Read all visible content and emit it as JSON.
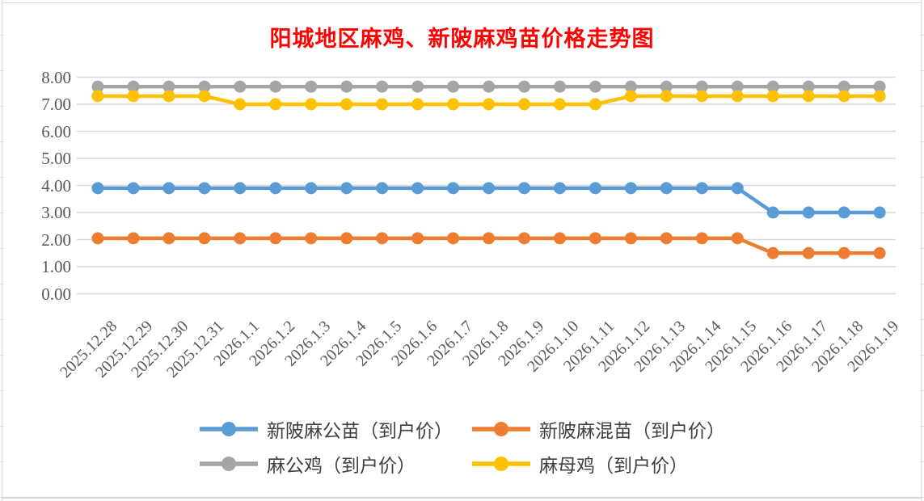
{
  "page": {
    "background": "#FFFFFF",
    "frame_color": "#D9D9D9"
  },
  "chart_data": {
    "type": "line",
    "title": "阳城地区麻鸡、新陂麻鸡苗价格走势图",
    "title_color": "#FF0000",
    "xlabel": "",
    "ylabel": "",
    "ylim": [
      0,
      8
    ],
    "ytick_step": 1.0,
    "ytick_labels": [
      "0.00",
      "1.00",
      "2.00",
      "3.00",
      "4.00",
      "5.00",
      "6.00",
      "7.00",
      "8.00"
    ],
    "grid": true,
    "gridline_color": "#D9D9D9",
    "axis_label_color": "#595959",
    "legend_position": "bottom",
    "categories": [
      "2025.12.28",
      "2025.12.29",
      "2025.12.30",
      "2025.12.31",
      "2026.1.1",
      "2026.1.2",
      "2026.1.3",
      "2026.1.4",
      "2026.1.5",
      "2026.1.6",
      "2026.1.7",
      "2026.1.8",
      "2026.1.9",
      "2026.1.10",
      "2026.1.11",
      "2026.1.12",
      "2026.1.13",
      "2026.1.14",
      "2026.1.15",
      "2026.1.16",
      "2026.1.17",
      "2026.1.18",
      "2026.1.19"
    ],
    "series": [
      {
        "id": "xinpoma-gongmiao",
        "name": "新陂麻公苗（到户价）",
        "color": "#5B9BD5",
        "values": [
          3.9,
          3.9,
          3.9,
          3.9,
          3.9,
          3.9,
          3.9,
          3.9,
          3.9,
          3.9,
          3.9,
          3.9,
          3.9,
          3.9,
          3.9,
          3.9,
          3.9,
          3.9,
          3.9,
          3.0,
          3.0,
          3.0,
          3.0
        ]
      },
      {
        "id": "xinpoma-hunmiao",
        "name": "新陂麻混苗（到户价）",
        "color": "#ED7D31",
        "values": [
          2.05,
          2.05,
          2.05,
          2.05,
          2.05,
          2.05,
          2.05,
          2.05,
          2.05,
          2.05,
          2.05,
          2.05,
          2.05,
          2.05,
          2.05,
          2.05,
          2.05,
          2.05,
          2.05,
          1.5,
          1.5,
          1.5,
          1.5
        ]
      },
      {
        "id": "magongji",
        "name": "麻公鸡（到户价）",
        "color": "#A5A5A5",
        "values": [
          7.65,
          7.65,
          7.65,
          7.65,
          7.65,
          7.65,
          7.65,
          7.65,
          7.65,
          7.65,
          7.65,
          7.65,
          7.65,
          7.65,
          7.65,
          7.65,
          7.65,
          7.65,
          7.65,
          7.65,
          7.65,
          7.65,
          7.65
        ]
      },
      {
        "id": "mamuji",
        "name": "麻母鸡（到户价）",
        "color": "#FFC000",
        "values": [
          7.3,
          7.3,
          7.3,
          7.3,
          7.0,
          7.0,
          7.0,
          7.0,
          7.0,
          7.0,
          7.0,
          7.0,
          7.0,
          7.0,
          7.0,
          7.3,
          7.3,
          7.3,
          7.3,
          7.3,
          7.3,
          7.3,
          7.3
        ]
      }
    ]
  }
}
